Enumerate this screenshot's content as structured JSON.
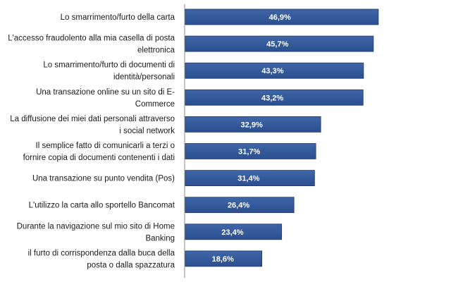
{
  "chart_data": {
    "type": "bar",
    "orientation": "horizontal",
    "categories": [
      [
        "Lo smarrimento/furto della carta"
      ],
      [
        "L'accesso fraudolento alla mia casella di posta",
        "elettronica"
      ],
      [
        "Lo smarrimento/furto di documenti di",
        "identità/personali"
      ],
      [
        "Una transazione online su un sito di E-",
        "Commerce"
      ],
      [
        "La diffusione dei miei dati personali attraverso",
        "i social network"
      ],
      [
        "Il semplice fatto di comunicarli a terzi o",
        "fornire copia di documenti contenenti  i dati"
      ],
      [
        "Una transazione su punto  vendita (Pos)"
      ],
      [
        "L'utilizzo la carta  allo sportello Bancomat"
      ],
      [
        "Durante la navigazione sul mio sito di Home",
        "Banking"
      ],
      [
        "il furto di corrispondenza dalla buca della",
        "posta o dalla spazzatura"
      ]
    ],
    "values": [
      46.9,
      45.7,
      43.3,
      43.2,
      32.9,
      31.7,
      31.4,
      26.4,
      23.4,
      18.6
    ],
    "value_labels": [
      "46,9%",
      "45,7%",
      "43,3%",
      "43,2%",
      "32,9%",
      "31,7%",
      "31,4%",
      "26,4%",
      "23,4%",
      "18,6%"
    ],
    "xlim": [
      0,
      50
    ],
    "title": "",
    "xlabel": "",
    "ylabel": "",
    "grid": false,
    "legend": "none",
    "colors": {
      "bar_top": "#3f66a8",
      "bar_bottom": "#2b4f8f",
      "bar_edge": "#1f3a6b",
      "axis": "#8a8a8a"
    }
  }
}
